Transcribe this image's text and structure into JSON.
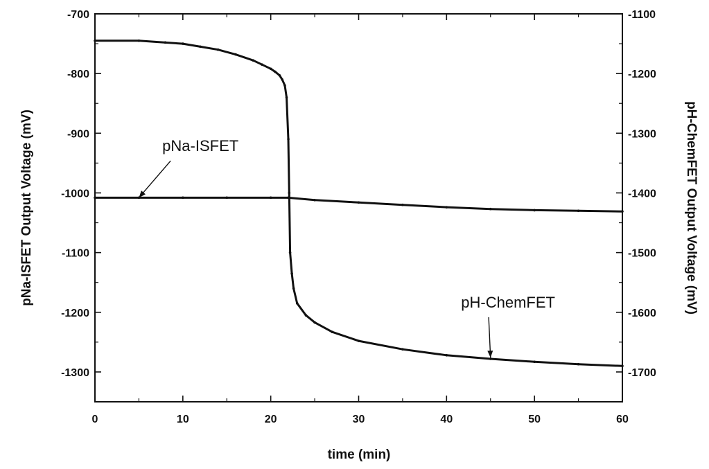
{
  "chart_data": {
    "type": "line",
    "xlabel": "time (min)",
    "ylabel_left": "pNa-ISFET Output Voltage (mV)",
    "ylabel_right": "pH-ChemFET Output Voltage (mV)",
    "xlim": [
      0,
      60
    ],
    "ylim_left": [
      -1350,
      -700
    ],
    "ylim_right": [
      -1750,
      -1100
    ],
    "x_ticks": [
      0,
      10,
      20,
      30,
      40,
      50,
      60
    ],
    "y_left_ticks": [
      -700,
      -800,
      -900,
      -1000,
      -1100,
      -1200,
      -1300
    ],
    "y_right_ticks": [
      -1100,
      -1200,
      -1300,
      -1400,
      -1500,
      -1600,
      -1700
    ],
    "grid": false,
    "series": [
      {
        "name": "pNa-ISFET",
        "axis": "left",
        "x": [
          0,
          5,
          10,
          15,
          20,
          22,
          25,
          30,
          35,
          40,
          45,
          50,
          55,
          60
        ],
        "y": [
          -1008,
          -1008,
          -1008,
          -1008,
          -1008,
          -1008,
          -1012,
          -1016,
          -1020,
          -1024,
          -1027,
          -1029,
          -1030,
          -1031
        ]
      },
      {
        "name": "pH-ChemFET",
        "axis": "right",
        "x": [
          0,
          5,
          8,
          10,
          12,
          14,
          16,
          18,
          19,
          20,
          20.5,
          21,
          21.3,
          21.6,
          21.8,
          22,
          22.1,
          22.2,
          22.4,
          22.6,
          23,
          24,
          25,
          27,
          30,
          35,
          40,
          45,
          50,
          55,
          60
        ],
        "y": [
          -1145,
          -1145,
          -1148,
          -1150,
          -1155,
          -1160,
          -1168,
          -1178,
          -1185,
          -1192,
          -1197,
          -1203,
          -1210,
          -1220,
          -1240,
          -1310,
          -1400,
          -1500,
          -1535,
          -1560,
          -1585,
          -1605,
          -1617,
          -1633,
          -1648,
          -1662,
          -1672,
          -1678,
          -1683,
          -1687,
          -1690
        ]
      }
    ],
    "annotations": [
      {
        "text": "pNa-ISFET",
        "x": 12,
        "y": -930,
        "axis": "left",
        "arrow_to": {
          "x": 5,
          "y": -1008
        }
      },
      {
        "text": "pH-ChemFET",
        "x": 47,
        "y": -1592,
        "axis": "right",
        "arrow_to": {
          "x": 45,
          "y": -1676
        }
      }
    ]
  }
}
